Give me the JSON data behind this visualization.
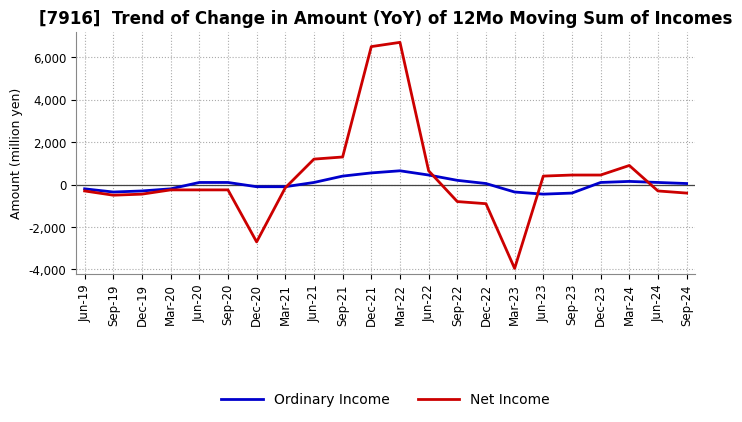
{
  "title": "[7916]  Trend of Change in Amount (YoY) of 12Mo Moving Sum of Incomes",
  "ylabel": "Amount (million yen)",
  "xlabels": [
    "Jun-19",
    "Sep-19",
    "Dec-19",
    "Mar-20",
    "Jun-20",
    "Sep-20",
    "Dec-20",
    "Mar-21",
    "Jun-21",
    "Sep-21",
    "Dec-21",
    "Mar-22",
    "Jun-22",
    "Sep-22",
    "Dec-22",
    "Mar-23",
    "Jun-23",
    "Sep-23",
    "Dec-23",
    "Mar-24",
    "Jun-24",
    "Sep-24"
  ],
  "ordinary_income": [
    -200,
    -350,
    -300,
    -200,
    100,
    100,
    -100,
    -100,
    100,
    400,
    550,
    650,
    450,
    200,
    50,
    -350,
    -450,
    -400,
    100,
    150,
    100,
    50
  ],
  "net_income": [
    -300,
    -500,
    -450,
    -250,
    -250,
    -250,
    -2700,
    -150,
    1200,
    1300,
    6500,
    6700,
    650,
    -800,
    -900,
    -3950,
    400,
    450,
    450,
    900,
    -300,
    -400
  ],
  "ordinary_color": "#0000cc",
  "net_color": "#cc0000",
  "ylim": [
    -4200,
    7200
  ],
  "yticks": [
    -4000,
    -2000,
    0,
    2000,
    4000,
    6000
  ],
  "background_color": "#ffffff",
  "grid_color": "#aaaaaa",
  "title_fontsize": 12,
  "legend_labels": [
    "Ordinary Income",
    "Net Income"
  ],
  "tick_fontsize": 8.5,
  "ylabel_fontsize": 9
}
